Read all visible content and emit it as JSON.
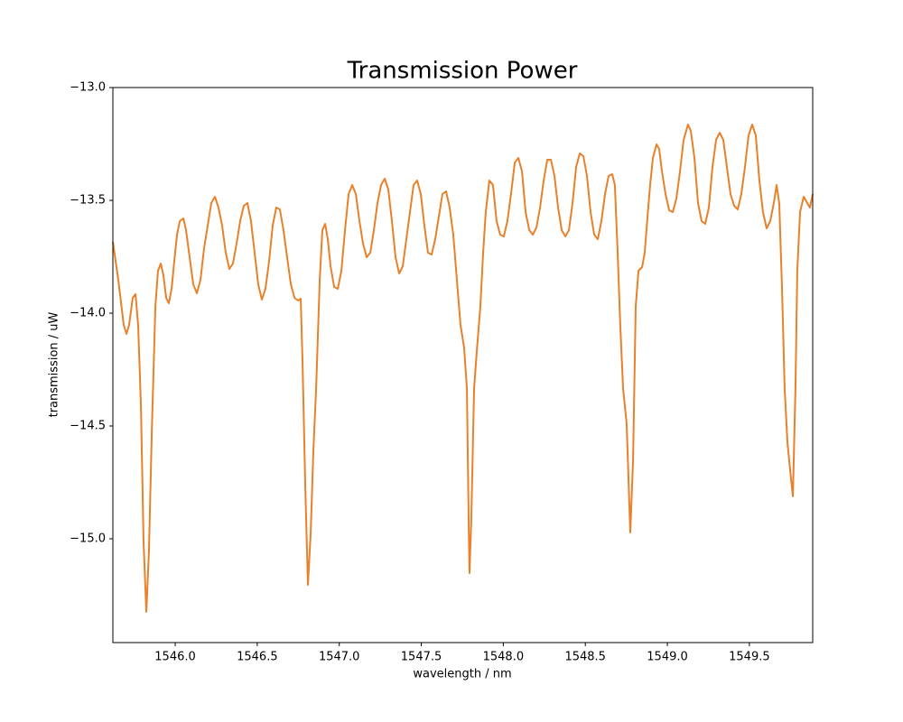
{
  "chart_data": {
    "type": "line",
    "title": "Transmission Power",
    "x_label": "wavelength / nm",
    "y_label": "transmission / uW",
    "color": "#e8812a",
    "grid": false,
    "xlim": [
      1545.62,
      1549.886
    ],
    "ylim": [
      -15.46,
      -13.0
    ],
    "xticks": [
      {
        "value": 1546,
        "label": "1546.0"
      },
      {
        "value": 1546.5,
        "label": "1546.5"
      },
      {
        "value": 1547,
        "label": "1547.0"
      },
      {
        "value": 1547.5,
        "label": "1547.5"
      },
      {
        "value": 1548,
        "label": "1548.0"
      },
      {
        "value": 1548.5,
        "label": "1548.5"
      },
      {
        "value": 1549,
        "label": "1549.0"
      },
      {
        "value": 1549.5,
        "label": "1549.5"
      }
    ],
    "yticks": [
      {
        "value": -13,
        "label": "−13.0"
      },
      {
        "value": -13.5,
        "label": "−13.5"
      },
      {
        "value": -14,
        "label": "−14.0"
      },
      {
        "value": -14.5,
        "label": "−14.5"
      },
      {
        "value": -15,
        "label": "−15.0"
      }
    ],
    "x": [
      1545.62,
      1545.653,
      1545.686,
      1545.703,
      1545.719,
      1545.741,
      1545.758,
      1545.774,
      1545.791,
      1545.807,
      1545.824,
      1545.84,
      1545.857,
      1545.879,
      1545.895,
      1545.912,
      1545.928,
      1545.945,
      1545.961,
      1545.978,
      1545.994,
      1546.011,
      1546.028,
      1546.05,
      1546.066,
      1546.088,
      1546.11,
      1546.132,
      1546.154,
      1546.176,
      1546.198,
      1546.22,
      1546.242,
      1546.264,
      1546.286,
      1546.308,
      1546.33,
      1546.352,
      1546.374,
      1546.396,
      1546.418,
      1546.44,
      1546.462,
      1546.484,
      1546.506,
      1546.528,
      1546.55,
      1546.572,
      1546.594,
      1546.616,
      1546.638,
      1546.66,
      1546.682,
      1546.705,
      1546.727,
      1546.749,
      1546.765,
      1546.776,
      1546.793,
      1546.809,
      1546.826,
      1546.842,
      1546.859,
      1546.881,
      1546.897,
      1546.914,
      1546.93,
      1546.947,
      1546.969,
      1546.991,
      1547.013,
      1547.035,
      1547.057,
      1547.079,
      1547.101,
      1547.123,
      1547.145,
      1547.167,
      1547.189,
      1547.211,
      1547.233,
      1547.255,
      1547.277,
      1547.299,
      1547.321,
      1547.343,
      1547.365,
      1547.387,
      1547.409,
      1547.431,
      1547.453,
      1547.475,
      1547.497,
      1547.519,
      1547.541,
      1547.563,
      1547.585,
      1547.607,
      1547.629,
      1547.651,
      1547.673,
      1547.695,
      1547.717,
      1547.739,
      1547.761,
      1547.778,
      1547.789,
      1547.794,
      1547.805,
      1547.822,
      1547.838,
      1547.86,
      1547.877,
      1547.893,
      1547.915,
      1547.937,
      1547.959,
      1547.981,
      1548.003,
      1548.025,
      1548.047,
      1548.07,
      1548.092,
      1548.114,
      1548.136,
      1548.158,
      1548.18,
      1548.202,
      1548.224,
      1548.246,
      1548.268,
      1548.29,
      1548.312,
      1548.334,
      1548.356,
      1548.378,
      1548.4,
      1548.422,
      1548.444,
      1548.466,
      1548.488,
      1548.51,
      1548.532,
      1548.554,
      1548.576,
      1548.598,
      1548.62,
      1548.642,
      1548.664,
      1548.68,
      1548.697,
      1548.713,
      1548.73,
      1548.752,
      1548.774,
      1548.791,
      1548.807,
      1548.824,
      1548.846,
      1548.862,
      1548.879,
      1548.895,
      1548.912,
      1548.934,
      1548.95,
      1548.967,
      1548.989,
      1549.011,
      1549.033,
      1549.055,
      1549.077,
      1549.099,
      1549.126,
      1549.143,
      1549.165,
      1549.187,
      1549.209,
      1549.231,
      1549.253,
      1549.275,
      1549.297,
      1549.319,
      1549.341,
      1549.363,
      1549.385,
      1549.407,
      1549.429,
      1549.451,
      1549.473,
      1549.495,
      1549.517,
      1549.539,
      1549.561,
      1549.583,
      1549.605,
      1549.627,
      1549.649,
      1549.666,
      1549.682,
      1549.699,
      1549.715,
      1549.732,
      1549.748,
      1549.765,
      1549.781,
      1549.792,
      1549.809,
      1549.831,
      1549.853,
      1549.869,
      1549.886
    ],
    "values": [
      -13.684,
      -13.852,
      -14.052,
      -14.092,
      -14.052,
      -13.932,
      -13.916,
      -14.052,
      -14.412,
      -15.012,
      -15.324,
      -15.052,
      -14.532,
      -13.972,
      -13.812,
      -13.78,
      -13.832,
      -13.932,
      -13.956,
      -13.892,
      -13.772,
      -13.652,
      -13.592,
      -13.58,
      -13.632,
      -13.752,
      -13.872,
      -13.912,
      -13.852,
      -13.712,
      -13.612,
      -13.512,
      -13.484,
      -13.532,
      -13.612,
      -13.732,
      -13.804,
      -13.78,
      -13.692,
      -13.592,
      -13.524,
      -13.512,
      -13.592,
      -13.732,
      -13.872,
      -13.94,
      -13.892,
      -13.772,
      -13.612,
      -13.532,
      -13.54,
      -13.632,
      -13.752,
      -13.872,
      -13.932,
      -13.944,
      -13.936,
      -14.212,
      -14.772,
      -15.204,
      -14.972,
      -14.612,
      -14.332,
      -13.852,
      -13.632,
      -13.604,
      -13.672,
      -13.792,
      -13.884,
      -13.892,
      -13.812,
      -13.632,
      -13.472,
      -13.432,
      -13.472,
      -13.592,
      -13.692,
      -13.752,
      -13.732,
      -13.632,
      -13.512,
      -13.432,
      -13.404,
      -13.452,
      -13.592,
      -13.752,
      -13.824,
      -13.792,
      -13.672,
      -13.552,
      -13.432,
      -13.412,
      -13.472,
      -13.612,
      -13.732,
      -13.74,
      -13.672,
      -13.572,
      -13.472,
      -13.46,
      -13.532,
      -13.652,
      -13.852,
      -14.052,
      -14.152,
      -14.332,
      -14.932,
      -15.152,
      -14.912,
      -14.332,
      -14.172,
      -13.972,
      -13.732,
      -13.552,
      -13.412,
      -13.432,
      -13.592,
      -13.652,
      -13.66,
      -13.592,
      -13.472,
      -13.332,
      -13.312,
      -13.372,
      -13.552,
      -13.632,
      -13.652,
      -13.62,
      -13.532,
      -13.412,
      -13.32,
      -13.32,
      -13.392,
      -13.532,
      -13.632,
      -13.66,
      -13.632,
      -13.512,
      -13.352,
      -13.292,
      -13.304,
      -13.392,
      -13.552,
      -13.652,
      -13.672,
      -13.592,
      -13.472,
      -13.392,
      -13.384,
      -13.432,
      -13.732,
      -14.052,
      -14.332,
      -14.492,
      -14.972,
      -14.652,
      -13.972,
      -13.812,
      -13.796,
      -13.732,
      -13.572,
      -13.432,
      -13.312,
      -13.252,
      -13.272,
      -13.372,
      -13.472,
      -13.544,
      -13.552,
      -13.492,
      -13.372,
      -13.232,
      -13.164,
      -13.192,
      -13.312,
      -13.512,
      -13.592,
      -13.604,
      -13.532,
      -13.352,
      -13.232,
      -13.2,
      -13.232,
      -13.352,
      -13.472,
      -13.524,
      -13.54,
      -13.472,
      -13.352,
      -13.212,
      -13.164,
      -13.212,
      -13.412,
      -13.552,
      -13.624,
      -13.592,
      -13.512,
      -13.432,
      -13.512,
      -13.892,
      -14.332,
      -14.572,
      -14.692,
      -14.812,
      -14.332,
      -13.812,
      -13.552,
      -13.484,
      -13.512,
      -13.532,
      -13.472
    ]
  }
}
